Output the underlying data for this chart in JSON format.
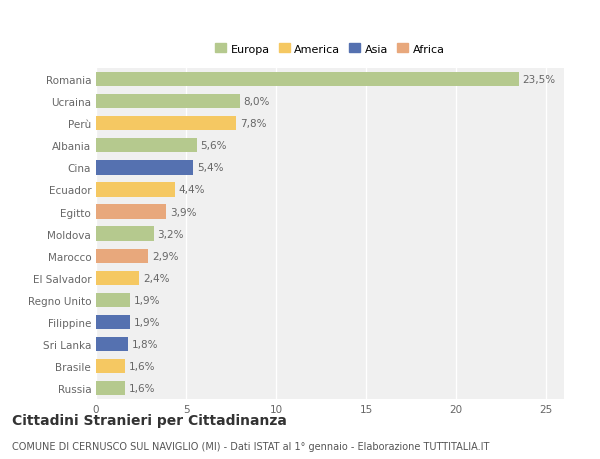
{
  "categories": [
    "Russia",
    "Brasile",
    "Sri Lanka",
    "Filippine",
    "Regno Unito",
    "El Salvador",
    "Marocco",
    "Moldova",
    "Egitto",
    "Ecuador",
    "Cina",
    "Albania",
    "Perù",
    "Ucraina",
    "Romania"
  ],
  "values": [
    1.6,
    1.6,
    1.8,
    1.9,
    1.9,
    2.4,
    2.9,
    3.2,
    3.9,
    4.4,
    5.4,
    5.6,
    7.8,
    8.0,
    23.5
  ],
  "labels": [
    "1,6%",
    "1,6%",
    "1,8%",
    "1,9%",
    "1,9%",
    "2,4%",
    "2,9%",
    "3,2%",
    "3,9%",
    "4,4%",
    "5,4%",
    "5,6%",
    "7,8%",
    "8,0%",
    "23,5%"
  ],
  "colors": [
    "#b5c98e",
    "#f5c862",
    "#5571b0",
    "#5571b0",
    "#b5c98e",
    "#f5c862",
    "#e8a87c",
    "#b5c98e",
    "#e8a87c",
    "#f5c862",
    "#5571b0",
    "#b5c98e",
    "#f5c862",
    "#b5c98e",
    "#b5c98e"
  ],
  "legend_labels": [
    "Europa",
    "America",
    "Asia",
    "Africa"
  ],
  "legend_colors": [
    "#b5c98e",
    "#f5c862",
    "#5571b0",
    "#e8a87c"
  ],
  "title": "Cittadini Stranieri per Cittadinanza",
  "subtitle": "COMUNE DI CERNUSCO SUL NAVIGLIO (MI) - Dati ISTAT al 1° gennaio - Elaborazione TUTTITALIA.IT",
  "xlim": [
    0,
    26
  ],
  "xticks": [
    0,
    5,
    10,
    15,
    20,
    25
  ],
  "background_color": "#ffffff",
  "bar_background": "#f0f0f0",
  "grid_color": "#ffffff",
  "text_color": "#666666",
  "label_fontsize": 7.5,
  "tick_fontsize": 7.5,
  "title_fontsize": 10,
  "subtitle_fontsize": 7
}
